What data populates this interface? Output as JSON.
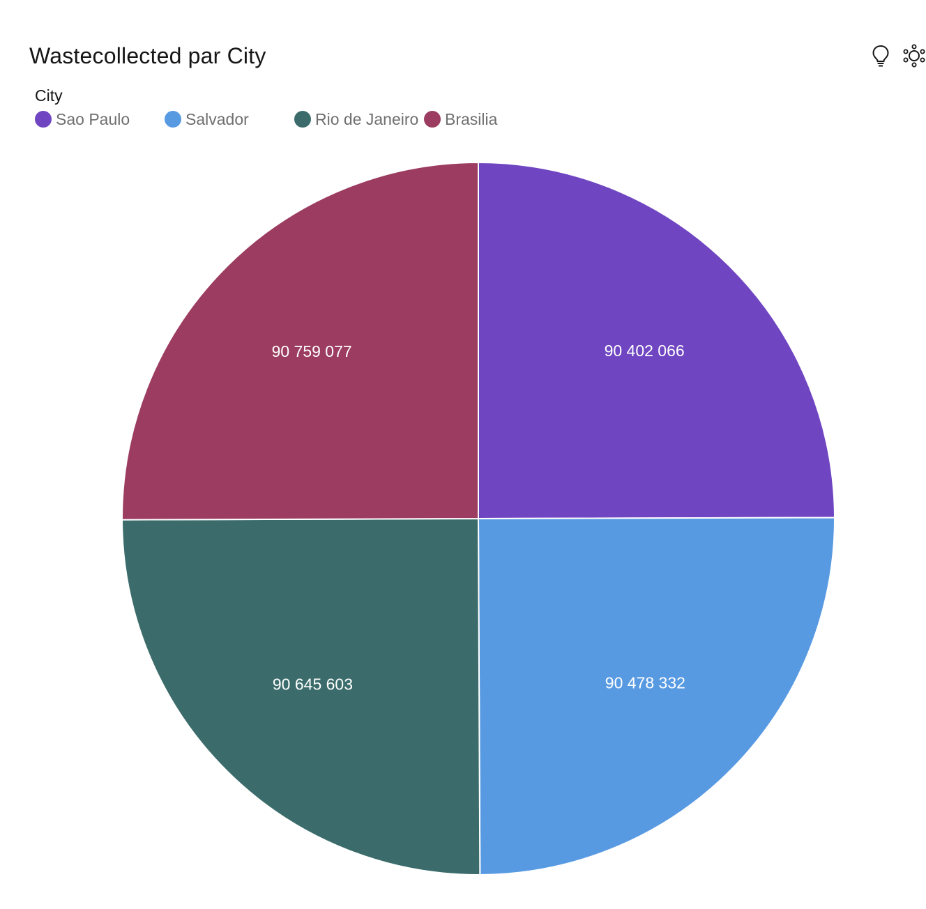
{
  "header": {
    "title": "Wastecollected par City",
    "insights_icon": "lightbulb-icon",
    "explore_icon": "explore-network-icon"
  },
  "legend": {
    "title": "City",
    "items": [
      {
        "label": "Sao Paulo",
        "color": "#6f45c1"
      },
      {
        "label": "Salvador",
        "color": "#589ae2"
      },
      {
        "label": "Rio de Janeiro",
        "color": "#3b6c6b"
      },
      {
        "label": "Brasilia",
        "color": "#9b3c60"
      }
    ]
  },
  "chart_data": {
    "type": "pie",
    "title": "Wastecollected par City",
    "legend_title": "City",
    "legend_position": "top-left",
    "categories": [
      "Sao Paulo",
      "Salvador",
      "Rio de Janeiro",
      "Brasilia"
    ],
    "values": [
      90402066,
      90478332,
      90645603,
      90759077
    ],
    "labels": [
      "90 402 066",
      "90 478 332",
      "90 645 603",
      "90 759 077"
    ],
    "colors": [
      "#6f45c1",
      "#589ae2",
      "#3b6c6b",
      "#9b3c60"
    ]
  }
}
